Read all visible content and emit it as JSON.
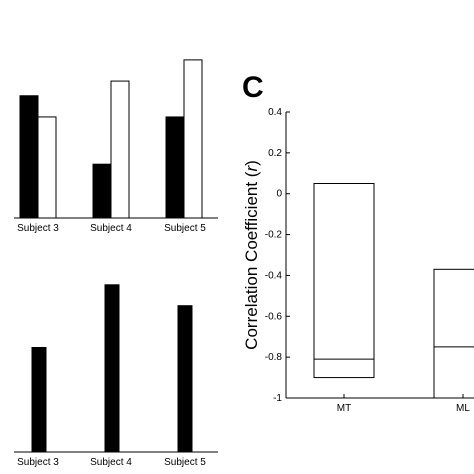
{
  "panel_letter": "C",
  "chart_data": [
    {
      "type": "bar",
      "categories": [
        "Subject 3",
        "Subject 4",
        "Subject 5"
      ],
      "series": [
        {
          "fill": "#000000",
          "values": [
            0.75,
            0.33,
            0.62
          ]
        },
        {
          "fill": "#ffffff",
          "values": [
            0.62,
            0.84,
            0.97
          ]
        }
      ],
      "ylim": [
        0,
        1
      ]
    },
    {
      "type": "bar",
      "categories": [
        "Subject 3",
        "Subject 4",
        "Subject 5"
      ],
      "series": [
        {
          "fill": "#000000",
          "values": [
            0.55,
            0.88,
            0.77
          ]
        }
      ],
      "ylim": [
        0,
        1
      ]
    },
    {
      "type": "box",
      "categories": [
        "MT",
        "ML"
      ],
      "boxes": [
        {
          "low": -0.9,
          "high": 0.05,
          "median": -0.81
        },
        {
          "low": -1.0,
          "high": -0.37,
          "median": -0.75
        }
      ],
      "ylabel": "Correlation Coefficient (r)",
      "ylim": [
        -1,
        0.4
      ],
      "yticks": [
        {
          "value": 0.4,
          "label": "0.4"
        },
        {
          "value": 0.2,
          "label": "0.2"
        },
        {
          "value": 0,
          "label": "0"
        },
        {
          "value": -0.2,
          "label": "-0.2"
        },
        {
          "value": -0.4,
          "label": "-0.4"
        },
        {
          "value": -0.6,
          "label": "-0.6"
        },
        {
          "value": -0.8,
          "label": "-0.8"
        },
        {
          "value": -1,
          "label": "-1"
        }
      ]
    }
  ]
}
